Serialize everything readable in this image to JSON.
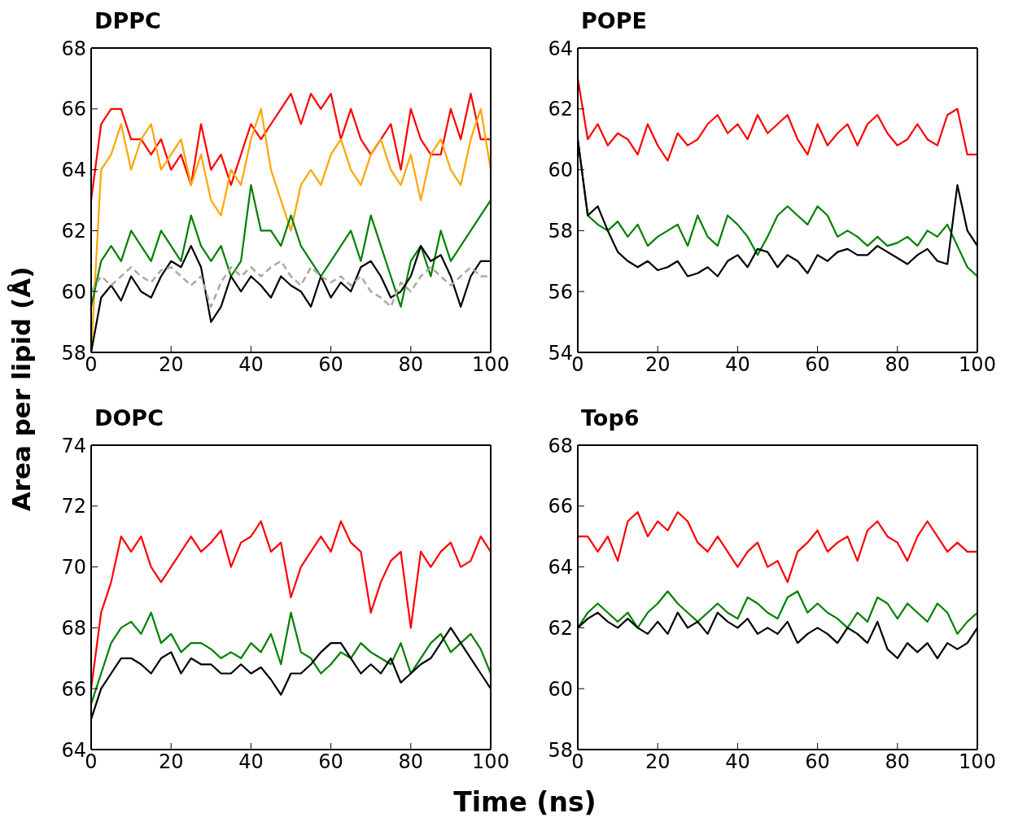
{
  "chart_data": [
    {
      "type": "line",
      "title": "DPPC",
      "ylabel": "Area per lipid (Å)",
      "xlim": [
        0,
        100
      ],
      "xticks": [
        0,
        20,
        40,
        60,
        80,
        100
      ],
      "ylim": [
        58,
        68
      ],
      "yticks": [
        58,
        60,
        62,
        64,
        66,
        68
      ],
      "grid": false,
      "legend": false,
      "marker": "none",
      "x": [
        0,
        2.5,
        5,
        7.5,
        10,
        12.5,
        15,
        17.5,
        20,
        22.5,
        25,
        27.5,
        30,
        32.5,
        35,
        37.5,
        40,
        42.5,
        45,
        47.5,
        50,
        52.5,
        55,
        57.5,
        60,
        62.5,
        65,
        67.5,
        70,
        72.5,
        75,
        77.5,
        80,
        82.5,
        85,
        87.5,
        90,
        92.5,
        95,
        97.5,
        100
      ],
      "series": [
        {
          "color": "#ff0000",
          "line_style": "solid",
          "values": [
            63,
            65.5,
            66,
            66,
            65,
            65,
            64.5,
            65,
            64,
            64.5,
            63.5,
            65.5,
            64,
            64.5,
            63.5,
            64.5,
            65.5,
            65,
            65.5,
            66,
            66.5,
            65.5,
            66.5,
            66,
            66.5,
            65,
            66,
            65,
            64.5,
            65,
            65.5,
            64,
            66,
            65,
            64.5,
            64.5,
            66,
            65,
            66.5,
            65,
            65
          ]
        },
        {
          "color": "#ffa500",
          "line_style": "solid",
          "values": [
            58,
            64,
            64.5,
            65.5,
            64,
            65,
            65.5,
            64,
            64.5,
            65,
            63.5,
            64.5,
            63,
            62.5,
            64,
            63.5,
            65,
            66,
            64,
            63,
            62,
            63.5,
            64,
            63.5,
            64.5,
            65,
            64,
            63.5,
            64.5,
            65,
            64,
            63.5,
            64.5,
            63,
            64.5,
            65,
            64,
            63.5,
            65,
            66,
            64
          ]
        },
        {
          "color": "#008000",
          "line_style": "solid",
          "values": [
            59.5,
            61,
            61.5,
            61,
            62,
            61.5,
            61,
            62,
            61.5,
            61,
            62.5,
            61.5,
            61,
            61.5,
            60.5,
            61,
            63.5,
            62,
            62,
            61.5,
            62.5,
            61.5,
            61,
            60.5,
            61,
            61.5,
            62,
            61,
            62.5,
            61.5,
            60.5,
            59.5,
            61,
            61.5,
            60.5,
            62,
            61,
            61.5,
            62,
            62.5,
            63
          ]
        },
        {
          "color": "#000000",
          "line_style": "solid",
          "values": [
            58,
            59.8,
            60.2,
            59.7,
            60.5,
            60,
            59.8,
            60.5,
            61,
            60.8,
            61.5,
            60.8,
            59,
            59.5,
            60.5,
            60,
            60.5,
            60.2,
            59.8,
            60.5,
            60.2,
            60,
            59.5,
            60.5,
            59.8,
            60.3,
            60,
            60.8,
            61,
            60.5,
            59.8,
            60,
            60.5,
            61.5,
            61,
            61.2,
            60.5,
            59.5,
            60.5,
            61,
            61
          ]
        },
        {
          "color": "#b0a89c",
          "line_style": "dashed",
          "values": [
            60,
            60.5,
            60.2,
            60.5,
            60.8,
            60.5,
            60.3,
            60.7,
            60.8,
            60.5,
            60.2,
            60.5,
            59.5,
            60.3,
            60.8,
            60.5,
            60.8,
            60.5,
            60.8,
            61,
            60.5,
            60.2,
            60.8,
            60.5,
            60.3,
            60.5,
            60.2,
            60.5,
            60,
            59.8,
            59.5,
            60.3,
            60,
            60.5,
            60.8,
            60.5,
            60.2,
            60.5,
            60.8,
            60.5,
            60.5
          ]
        }
      ]
    },
    {
      "type": "line",
      "title": "POPE",
      "xlim": [
        0,
        100
      ],
      "xticks": [
        0,
        20,
        40,
        60,
        80,
        100
      ],
      "ylim": [
        54,
        64
      ],
      "yticks": [
        54,
        56,
        58,
        60,
        62,
        64
      ],
      "grid": false,
      "legend": false,
      "marker": "none",
      "x": [
        0,
        2.5,
        5,
        7.5,
        10,
        12.5,
        15,
        17.5,
        20,
        22.5,
        25,
        27.5,
        30,
        32.5,
        35,
        37.5,
        40,
        42.5,
        45,
        47.5,
        50,
        52.5,
        55,
        57.5,
        60,
        62.5,
        65,
        67.5,
        70,
        72.5,
        75,
        77.5,
        80,
        82.5,
        85,
        87.5,
        90,
        92.5,
        95,
        97.5,
        100
      ],
      "series": [
        {
          "color": "#ff0000",
          "line_style": "solid",
          "values": [
            63,
            61,
            61.5,
            60.8,
            61.2,
            61,
            60.5,
            61.5,
            60.8,
            60.3,
            61.2,
            60.8,
            61,
            61.5,
            61.8,
            61.2,
            61.5,
            61,
            61.8,
            61.2,
            61.5,
            61.8,
            61,
            60.5,
            61.5,
            60.8,
            61.2,
            61.5,
            60.8,
            61.5,
            61.8,
            61.2,
            60.8,
            61,
            61.5,
            61,
            60.8,
            61.8,
            62,
            60.5,
            60.5
          ]
        },
        {
          "color": "#008000",
          "line_style": "solid",
          "values": [
            61,
            58.5,
            58.2,
            58,
            58.3,
            57.8,
            58.2,
            57.5,
            57.8,
            58,
            58.2,
            57.5,
            58.5,
            57.8,
            57.5,
            58.5,
            58.2,
            57.8,
            57.2,
            57.8,
            58.5,
            58.8,
            58.5,
            58.2,
            58.8,
            58.5,
            57.8,
            58,
            57.8,
            57.5,
            57.8,
            57.5,
            57.6,
            57.8,
            57.5,
            58,
            57.8,
            58.2,
            57.5,
            56.8,
            56.5
          ]
        },
        {
          "color": "#000000",
          "line_style": "solid",
          "values": [
            61,
            58.5,
            58.8,
            58,
            57.3,
            57,
            56.8,
            57,
            56.7,
            56.8,
            57,
            56.5,
            56.6,
            56.8,
            56.5,
            57,
            57.2,
            56.8,
            57.4,
            57.3,
            56.8,
            57.2,
            57,
            56.6,
            57.2,
            57,
            57.3,
            57.4,
            57.2,
            57.2,
            57.5,
            57.3,
            57.1,
            56.9,
            57.2,
            57.4,
            57,
            56.9,
            59.5,
            58,
            57.5
          ]
        }
      ]
    },
    {
      "type": "line",
      "title": "DOPC",
      "xlabel": "Time (ns)",
      "xlim": [
        0,
        100
      ],
      "xticks": [
        0,
        20,
        40,
        60,
        80,
        100
      ],
      "ylim": [
        64,
        74
      ],
      "yticks": [
        64,
        66,
        68,
        70,
        72,
        74
      ],
      "grid": false,
      "legend": false,
      "marker": "none",
      "x": [
        0,
        2.5,
        5,
        7.5,
        10,
        12.5,
        15,
        17.5,
        20,
        22.5,
        25,
        27.5,
        30,
        32.5,
        35,
        37.5,
        40,
        42.5,
        45,
        47.5,
        50,
        52.5,
        55,
        57.5,
        60,
        62.5,
        65,
        67.5,
        70,
        72.5,
        75,
        77.5,
        80,
        82.5,
        85,
        87.5,
        90,
        92.5,
        95,
        97.5,
        100
      ],
      "series": [
        {
          "color": "#ff0000",
          "line_style": "solid",
          "values": [
            66,
            68.5,
            69.5,
            71,
            70.5,
            71,
            70,
            69.5,
            70,
            70.5,
            71,
            70.5,
            70.8,
            71.2,
            70,
            70.8,
            71,
            71.5,
            70.5,
            70.8,
            69,
            70,
            70.5,
            71,
            70.5,
            71.5,
            70.8,
            70.5,
            68.5,
            69.5,
            70.2,
            70.5,
            68,
            70.5,
            70,
            70.5,
            70.8,
            70,
            70.2,
            71,
            70.5
          ]
        },
        {
          "color": "#008000",
          "line_style": "solid",
          "values": [
            65.5,
            66.5,
            67.5,
            68,
            68.2,
            67.8,
            68.5,
            67.5,
            67.8,
            67.2,
            67.5,
            67.5,
            67.3,
            67,
            67.2,
            67,
            67.5,
            67.2,
            67.8,
            66.8,
            68.5,
            67.2,
            67,
            66.5,
            66.8,
            67.2,
            67,
            67.5,
            67.2,
            67,
            66.8,
            67.5,
            66.5,
            67,
            67.5,
            67.8,
            67.2,
            67.5,
            67.8,
            67.3,
            66.5
          ]
        },
        {
          "color": "#000000",
          "line_style": "solid",
          "values": [
            65,
            66,
            66.5,
            67,
            67,
            66.8,
            66.5,
            67,
            67.2,
            66.5,
            67,
            66.8,
            66.8,
            66.5,
            66.5,
            66.8,
            66.5,
            66.7,
            66.3,
            65.8,
            66.5,
            66.5,
            66.8,
            67.2,
            67.5,
            67.5,
            67,
            66.5,
            66.8,
            66.5,
            67,
            66.2,
            66.5,
            66.8,
            67,
            67.5,
            68,
            67.5,
            67,
            66.5,
            66
          ]
        }
      ]
    },
    {
      "type": "line",
      "title": "Top6",
      "xlim": [
        0,
        100
      ],
      "xticks": [
        0,
        20,
        40,
        60,
        80,
        100
      ],
      "ylim": [
        58,
        68
      ],
      "yticks": [
        58,
        60,
        62,
        64,
        66,
        68
      ],
      "grid": false,
      "legend": false,
      "marker": "none",
      "x": [
        0,
        2.5,
        5,
        7.5,
        10,
        12.5,
        15,
        17.5,
        20,
        22.5,
        25,
        27.5,
        30,
        32.5,
        35,
        37.5,
        40,
        42.5,
        45,
        47.5,
        50,
        52.5,
        55,
        57.5,
        60,
        62.5,
        65,
        67.5,
        70,
        72.5,
        75,
        77.5,
        80,
        82.5,
        85,
        87.5,
        90,
        92.5,
        95,
        97.5,
        100
      ],
      "series": [
        {
          "color": "#ff0000",
          "line_style": "solid",
          "values": [
            65,
            65,
            64.5,
            65,
            64.2,
            65.5,
            65.8,
            65,
            65.5,
            65.2,
            65.8,
            65.5,
            64.8,
            64.5,
            65,
            64.5,
            64,
            64.5,
            64.8,
            64,
            64.2,
            63.5,
            64.5,
            64.8,
            65.2,
            64.5,
            64.8,
            65,
            64.2,
            65.2,
            65.5,
            65,
            64.8,
            64.2,
            65,
            65.5,
            65,
            64.5,
            64.8,
            64.5,
            64.5
          ]
        },
        {
          "color": "#008000",
          "line_style": "solid",
          "values": [
            62,
            62.5,
            62.8,
            62.5,
            62.2,
            62.5,
            62,
            62.5,
            62.8,
            63.2,
            62.8,
            62.5,
            62.2,
            62.5,
            62.8,
            62.5,
            62.3,
            63,
            62.8,
            62.5,
            62.3,
            63,
            63.2,
            62.5,
            62.8,
            62.5,
            62.3,
            62,
            62.5,
            62.2,
            63,
            62.8,
            62.3,
            62.8,
            62.5,
            62.2,
            62.8,
            62.5,
            61.8,
            62.2,
            62.5
          ]
        },
        {
          "color": "#000000",
          "line_style": "solid",
          "values": [
            62,
            62.3,
            62.5,
            62.2,
            62,
            62.3,
            62,
            61.8,
            62.2,
            61.8,
            62.5,
            62,
            62.2,
            61.8,
            62.5,
            62.2,
            62,
            62.3,
            61.8,
            62,
            61.8,
            62.2,
            61.5,
            61.8,
            62,
            61.8,
            61.5,
            62,
            61.8,
            61.5,
            62.2,
            61.3,
            61,
            61.5,
            61.2,
            61.5,
            61,
            61.5,
            61.3,
            61.5,
            62
          ]
        }
      ]
    }
  ]
}
